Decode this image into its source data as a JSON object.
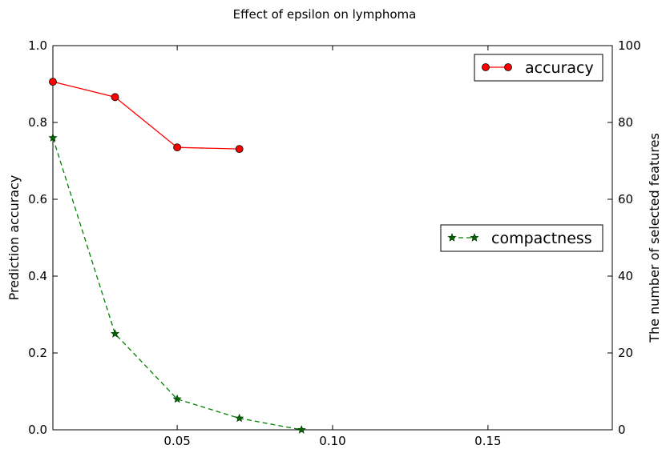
{
  "chart_data": {
    "type": "line",
    "title": "Effect of epsilon on lymphoma",
    "xlabel": "",
    "ylabel": "Prediction accuracy",
    "y2label": "The number of selected features",
    "xlim": [
      0.01,
      0.19
    ],
    "ylim": [
      0.0,
      1.0
    ],
    "y2lim": [
      0,
      100
    ],
    "xticks": [
      "0.05",
      "0.10",
      "0.15"
    ],
    "xtick_values": [
      0.05,
      0.1,
      0.15
    ],
    "yticks": [
      "0.0",
      "0.2",
      "0.4",
      "0.6",
      "0.8",
      "1.0"
    ],
    "ytick_values": [
      0.0,
      0.2,
      0.4,
      0.6,
      0.8,
      1.0
    ],
    "y2ticks": [
      "0",
      "20",
      "40",
      "60",
      "80",
      "100"
    ],
    "y2tick_values": [
      0,
      20,
      40,
      60,
      80,
      100
    ],
    "grid": false,
    "series": [
      {
        "name": "accuracy",
        "axis": "left",
        "color": "#ff0000",
        "marker": "circle",
        "linestyle": "solid",
        "legend_position": "upper right",
        "x": [
          0.01,
          0.03,
          0.05,
          0.07
        ],
        "y": [
          0.906,
          0.866,
          0.735,
          0.731
        ]
      },
      {
        "name": "compactness",
        "axis": "right",
        "color": "#008000",
        "marker": "star",
        "linestyle": "dashed",
        "legend_position": "center right",
        "x": [
          0.01,
          0.03,
          0.05,
          0.07,
          0.09
        ],
        "y": [
          76,
          25,
          8,
          3,
          0
        ]
      }
    ]
  }
}
